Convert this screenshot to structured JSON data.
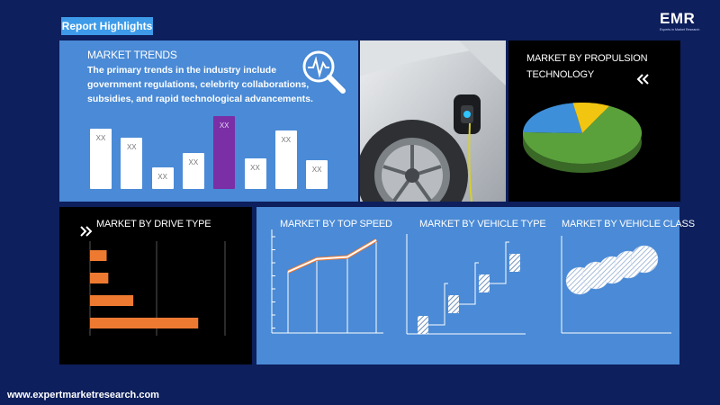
{
  "badge": "Report Highlights",
  "logo": {
    "word": "EMR",
    "tagline": "Experts in Market Research"
  },
  "trends": {
    "title": "MARKET TRENDS",
    "description": "The primary trends in the industry include government regulations, celebrity collaborations, subsidies, and rapid technological advancements.",
    "bars": [
      {
        "label": "XX",
        "value": 5
      },
      {
        "label": "XX",
        "value": 4.2
      },
      {
        "label": "XX",
        "value": 1.8
      },
      {
        "label": "XX",
        "value": 3
      },
      {
        "label": "XX",
        "value": 6,
        "highlight": true
      },
      {
        "label": "XX",
        "value": 2.5
      },
      {
        "label": "XX",
        "value": 4.8
      },
      {
        "label": "XX",
        "value": 2.4
      }
    ],
    "bar_color": "#ffffff",
    "highlight_color": "#7a2fa6"
  },
  "propulsion": {
    "title_line1": "MARKET BY PROPULSION",
    "title_line2": "TECHNOLOGY",
    "slices": [
      {
        "value": 68,
        "color": "#5aa13c"
      },
      {
        "value": 22,
        "color": "#3d8fd9"
      },
      {
        "value": 10,
        "color": "#f2c511"
      }
    ]
  },
  "drive": {
    "title": "MARKET BY DRIVE TYPE",
    "values": [
      1,
      1.1,
      2.6,
      6.5
    ],
    "bar_color": "#ee7a32"
  },
  "top_speed": {
    "title": "MARKET BY TOP SPEED",
    "values": [
      3,
      4.3,
      4.5,
      6.2
    ]
  },
  "vehicle_type": {
    "title": "MARKET BY VEHICLE TYPE",
    "steps": [
      1,
      2,
      3,
      4
    ]
  },
  "vehicle_class": {
    "title": "MARKET BY VEHICLE CLASS",
    "circles": 5
  },
  "footer": "www.expertmarketresearch.com",
  "colors": {
    "background": "#0d1f5c",
    "panel_blue": "#4a8ad6",
    "accent": "#3d9be9"
  }
}
